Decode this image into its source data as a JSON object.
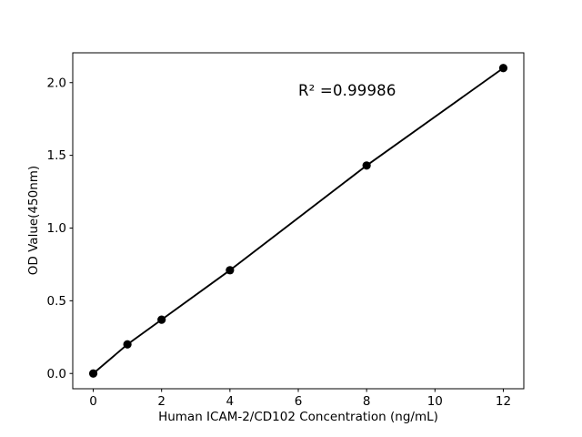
{
  "chart_data": {
    "type": "line",
    "x": [
      0,
      1,
      2,
      4,
      8,
      12
    ],
    "y": [
      0.0,
      0.2,
      0.37,
      0.71,
      1.43,
      2.1
    ],
    "title": "",
    "xlabel": "Human ICAM-2/CD102 Concentration (ng/mL)",
    "ylabel": "OD Value(450nm)",
    "annotation": "R² =0.99986",
    "xlim": [
      -0.6,
      12.6
    ],
    "ylim": [
      -0.105,
      2.205
    ],
    "xtick_values": [
      0,
      2,
      4,
      6,
      8,
      10,
      12
    ],
    "xtick_labels": [
      "0",
      "2",
      "4",
      "6",
      "8",
      "10",
      "12"
    ],
    "ytick_values": [
      0.0,
      0.5,
      1.0,
      1.5,
      2.0
    ],
    "ytick_labels": [
      "0.0",
      "0.5",
      "1.0",
      "1.5",
      "2.0"
    ],
    "grid": false,
    "legend_position": "none",
    "marker": "circle",
    "line_color": "#000000",
    "marker_color": "#000000",
    "axis_color": "#000000",
    "background_color": "#ffffff"
  }
}
